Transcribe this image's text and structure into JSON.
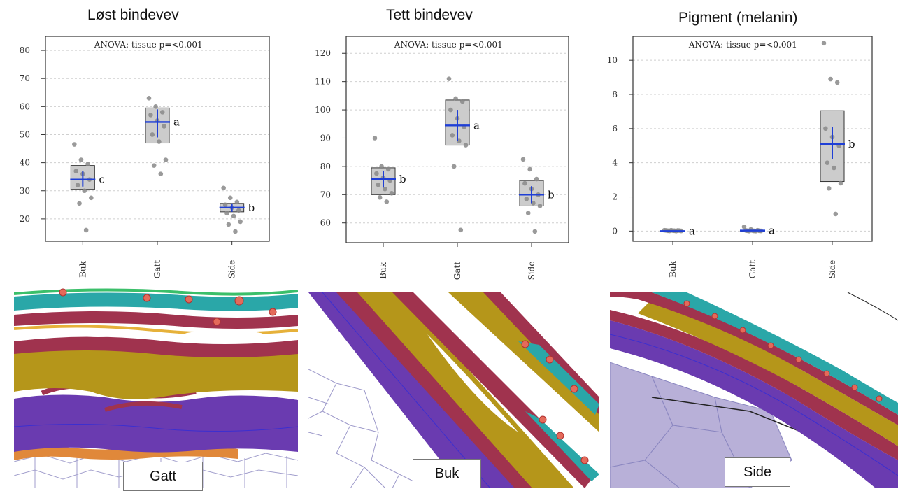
{
  "panels": [
    {
      "title": "Løst bindevev"
    },
    {
      "title": "Tett bindevev"
    },
    {
      "title": "Pigment (melanin)"
    }
  ],
  "images": [
    {
      "label": "Gatt"
    },
    {
      "label": "Buk"
    },
    {
      "label": "Side"
    }
  ],
  "colors": {
    "box_fill": "#cccccc",
    "mean_marker": "#1f3fd6",
    "points": "#888888",
    "tissue_purple": "#6a3bb0",
    "tissue_gold": "#b5961a",
    "tissue_red": "#a0334e",
    "tissue_teal": "#2aa7a8",
    "tissue_green": "#3bbf6a",
    "tissue_orange": "#e0883a"
  },
  "chart_data": [
    {
      "type": "box",
      "title": "Løst bindevev",
      "annotation": "ANOVA: tissue p=<0.001",
      "categories": [
        "Buk",
        "Gatt",
        "Side"
      ],
      "ylim": [
        12,
        85
      ],
      "yticks": [
        20,
        30,
        40,
        50,
        60,
        70,
        80
      ],
      "grid": true,
      "boxes": [
        {
          "category": "Buk",
          "q1": 30.5,
          "q3": 39,
          "mean": 34,
          "ci_low": 31.5,
          "ci_high": 37,
          "letter": "c",
          "points": [
            46.5,
            41,
            39.5,
            37,
            36,
            34,
            32,
            30,
            27.5,
            25.5,
            16
          ]
        },
        {
          "category": "Gatt",
          "q1": 47,
          "q3": 59.5,
          "mean": 54.5,
          "ci_low": 49,
          "ci_high": 59,
          "letter": "a",
          "points": [
            63,
            60,
            58,
            57,
            55,
            53,
            50,
            47.5,
            41,
            39,
            36
          ]
        },
        {
          "category": "Side",
          "q1": 22.5,
          "q3": 25.5,
          "mean": 24,
          "ci_low": 22.5,
          "ci_high": 25.5,
          "letter": "b",
          "points": [
            31,
            27.5,
            26,
            25,
            24,
            23,
            22,
            21,
            19,
            18,
            15.5
          ]
        }
      ]
    },
    {
      "type": "box",
      "title": "Tett bindevev",
      "annotation": "ANOVA: tissue p=<0.001",
      "categories": [
        "Buk",
        "Gatt",
        "Side"
      ],
      "ylim": [
        53,
        126
      ],
      "yticks": [
        60,
        70,
        80,
        90,
        100,
        110,
        120
      ],
      "grid": true,
      "boxes": [
        {
          "category": "Buk",
          "q1": 70,
          "q3": 79.5,
          "mean": 75.5,
          "ci_low": 72.5,
          "ci_high": 78.5,
          "letter": "b",
          "points": [
            90,
            80,
            79,
            77.5,
            76,
            75,
            73.5,
            72,
            70.5,
            69,
            67.5
          ]
        },
        {
          "category": "Gatt",
          "q1": 87.5,
          "q3": 103.5,
          "mean": 94.5,
          "ci_low": 89,
          "ci_high": 100,
          "letter": "a",
          "points": [
            111,
            104,
            103,
            100,
            97,
            94,
            91,
            89,
            87.5,
            80,
            57.5
          ]
        },
        {
          "category": "Side",
          "q1": 66,
          "q3": 75,
          "mean": 70,
          "ci_low": 67,
          "ci_high": 73,
          "letter": "b",
          "points": [
            82.5,
            79,
            75.5,
            74,
            72,
            70,
            68.5,
            67,
            66,
            63.5,
            57
          ]
        }
      ]
    },
    {
      "type": "box",
      "title": "Pigment (melanin)",
      "annotation": "ANOVA: tissue p=<0.001",
      "categories": [
        "Buk",
        "Gatt",
        "Side"
      ],
      "ylim": [
        -0.6,
        11.4
      ],
      "yticks": [
        0,
        2,
        4,
        6,
        8,
        10
      ],
      "grid": true,
      "boxes": [
        {
          "category": "Buk",
          "q1": 0,
          "q3": 0,
          "mean": 0,
          "ci_low": 0,
          "ci_high": 0,
          "letter": "a",
          "points": [
            0.05,
            0.05,
            0.04,
            0.04,
            0.03,
            0.03,
            0.02,
            0.02,
            0.01,
            0.01,
            0
          ]
        },
        {
          "category": "Gatt",
          "q1": 0,
          "q3": 0,
          "mean": 0.03,
          "ci_low": 0,
          "ci_high": 0.06,
          "letter": "a",
          "points": [
            0.25,
            0.1,
            0.05,
            0.04,
            0.03,
            0.02,
            0.02,
            0.01,
            0.01,
            0,
            0
          ]
        },
        {
          "category": "Side",
          "q1": 2.9,
          "q3": 7.05,
          "mean": 5.1,
          "ci_low": 4.2,
          "ci_high": 6.1,
          "letter": "b",
          "points": [
            11,
            8.9,
            8.7,
            6,
            5.5,
            5,
            4,
            3.7,
            2.8,
            2.5,
            1
          ]
        }
      ]
    }
  ]
}
